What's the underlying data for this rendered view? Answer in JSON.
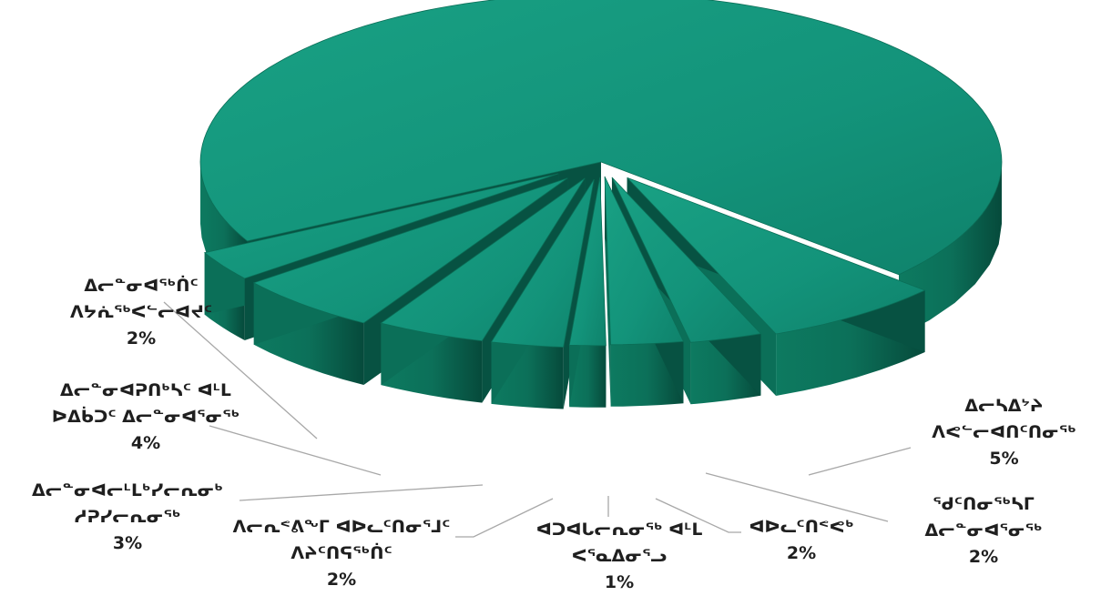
{
  "chart_data": {
    "type": "pie",
    "style": "3d-exploded",
    "colors": {
      "top": "#14947a",
      "side": "#0b6f58",
      "side_dark": "#075242",
      "leader": "#a8a8a8"
    },
    "slices": [
      {
        "label_line1": "ᐃᓕᓐᓂᐊᖅᑏᑦ",
        "label_line2": "ᐱᔭᕇᖅᐸᓪᓕᐊᔪᑦ",
        "value": 2,
        "value_label": "2%"
      },
      {
        "label_line1": "ᐃᓕᓐᓂᐊᕈᑎᒃᓴᑦ ᐊᒻᒪ",
        "label_line2": "ᐅᐃᑳᑐᑦ ᐃᓕᓐᓂᐊᕐᓂᖅ",
        "value": 4,
        "value_label": "4%"
      },
      {
        "label_line1": "ᐃᓕᓐᓂᐊᓕᒻᒪᒃᓯᓕᕆᓂᒃ",
        "label_line2": "ᓱᕈᓯᓕᕆᓂᖅ",
        "value": 3,
        "value_label": "3%"
      },
      {
        "label_line1": "ᐱᓕᕆᕝᕕᖕᒥ ᐊᐅᓚᑦᑎᓂᕐᒧᑦ",
        "label_line2": "ᐱᔨᑦᑎᕋᖅᑏᑦ",
        "value": 2,
        "value_label": "2%"
      },
      {
        "label_line1": "ᐊᑐᐊᒐᓕᕆᓂᖅ ᐊᒻᒪ",
        "label_line2": "ᐸᕐᓇᐃᓂᕐᓗ",
        "value": 1,
        "value_label": "1%"
      },
      {
        "label_line1": "ᐊᐅᓚᑦᑎᕝᕙᒃ",
        "label_line2": "",
        "value": 2,
        "value_label": "2%"
      },
      {
        "label_line1": "ᖁᑦᑎᓂᖅᓴᒥ",
        "label_line2": "ᐃᓕᓐᓂᐊᕐᓂᖅ",
        "value": 2,
        "value_label": "2%"
      },
      {
        "label_line1": "ᐃᓕᓴᐃᔾᔨ",
        "label_line2": "ᐱᕙᓪᓕᐊᑎᑦᑎᓂᖅ",
        "value": 5,
        "value_label": "5%"
      },
      {
        "label_line1": "",
        "label_line2": "",
        "value": 79,
        "value_label": ""
      }
    ]
  }
}
